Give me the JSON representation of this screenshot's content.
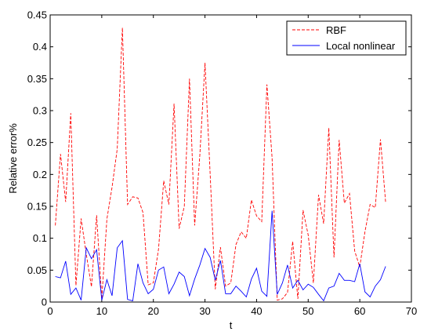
{
  "chart_data": {
    "type": "line",
    "xlabel": "t",
    "ylabel": "Relative error%",
    "xlim": [
      0,
      70
    ],
    "ylim": [
      0,
      0.45
    ],
    "xticks": [
      0,
      10,
      20,
      30,
      40,
      50,
      60,
      70
    ],
    "yticks": [
      0,
      0.05,
      0.1,
      0.15,
      0.2,
      0.25,
      0.3,
      0.35,
      0.4,
      0.45
    ],
    "xtick_labels": [
      "0",
      "10",
      "20",
      "30",
      "40",
      "50",
      "60",
      "70"
    ],
    "ytick_labels": [
      "0",
      "0.05",
      "0.1",
      "0.15",
      "0.2",
      "0.25",
      "0.3",
      "0.35",
      "0.4",
      "0.45"
    ],
    "grid": false,
    "legend_position": "top-right",
    "series": [
      {
        "name": "RBF",
        "color": "#ff0000",
        "style": "dashed",
        "x": [
          1,
          2,
          3,
          4,
          5,
          6,
          7,
          8,
          9,
          10,
          11,
          12,
          13,
          14,
          15,
          16,
          17,
          18,
          19,
          20,
          21,
          22,
          23,
          24,
          25,
          26,
          27,
          28,
          29,
          30,
          31,
          32,
          33,
          34,
          35,
          36,
          37,
          38,
          39,
          40,
          41,
          42,
          43,
          44,
          45,
          46,
          47,
          48,
          49,
          50,
          51,
          52,
          53,
          54,
          55,
          56,
          57,
          58,
          59,
          60,
          61,
          62,
          63,
          64,
          65
        ],
        "values": [
          0.12,
          0.232,
          0.157,
          0.296,
          0.026,
          0.131,
          0.075,
          0.024,
          0.136,
          0.005,
          0.13,
          0.18,
          0.24,
          0.43,
          0.153,
          0.165,
          0.163,
          0.14,
          0.027,
          0.03,
          0.083,
          0.19,
          0.153,
          0.311,
          0.115,
          0.15,
          0.35,
          0.12,
          0.23,
          0.375,
          0.2,
          0.02,
          0.086,
          0.025,
          0.03,
          0.09,
          0.11,
          0.1,
          0.16,
          0.135,
          0.126,
          0.341,
          0.226,
          0.003,
          0.005,
          0.015,
          0.095,
          0.005,
          0.144,
          0.105,
          0.03,
          0.168,
          0.123,
          0.273,
          0.07,
          0.254,
          0.155,
          0.17,
          0.08,
          0.055,
          0.11,
          0.153,
          0.148,
          0.255,
          0.156
        ]
      },
      {
        "name": "Local nonlinear",
        "color": "#0000ff",
        "style": "solid",
        "x": [
          1,
          2,
          3,
          4,
          5,
          6,
          7,
          8,
          9,
          10,
          11,
          12,
          13,
          14,
          15,
          16,
          17,
          18,
          19,
          20,
          21,
          22,
          23,
          24,
          25,
          26,
          27,
          28,
          29,
          30,
          31,
          32,
          33,
          34,
          35,
          36,
          37,
          38,
          39,
          40,
          41,
          42,
          43,
          44,
          45,
          46,
          47,
          48,
          49,
          50,
          51,
          52,
          53,
          54,
          55,
          56,
          57,
          58,
          59,
          60,
          61,
          62,
          63,
          64,
          65
        ],
        "values": [
          0.04,
          0.038,
          0.064,
          0.012,
          0.022,
          0.003,
          0.085,
          0.068,
          0.082,
          0.003,
          0.035,
          0.01,
          0.085,
          0.096,
          0.004,
          0.002,
          0.06,
          0.03,
          0.013,
          0.02,
          0.05,
          0.055,
          0.013,
          0.028,
          0.047,
          0.04,
          0.01,
          0.036,
          0.058,
          0.084,
          0.07,
          0.034,
          0.065,
          0.013,
          0.013,
          0.025,
          0.017,
          0.008,
          0.036,
          0.053,
          0.017,
          0.009,
          0.143,
          0.012,
          0.03,
          0.058,
          0.022,
          0.034,
          0.019,
          0.028,
          0.023,
          0.012,
          0.002,
          0.022,
          0.025,
          0.045,
          0.034,
          0.034,
          0.032,
          0.06,
          0.016,
          0.008,
          0.025,
          0.035,
          0.056
        ]
      }
    ]
  }
}
